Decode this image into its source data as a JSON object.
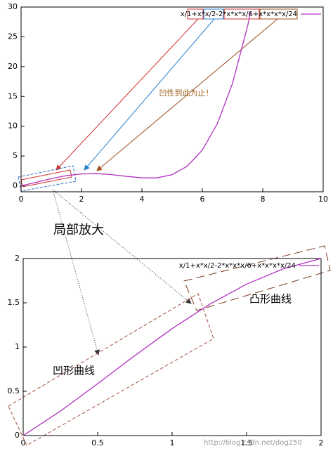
{
  "chart_data": [
    {
      "type": "line",
      "x": [
        0,
        0.5,
        1,
        1.5,
        2,
        2.5,
        3,
        3.5,
        4,
        4.5,
        5,
        5.5,
        6,
        6.5,
        7,
        7.5,
        7.6
      ],
      "series": [
        {
          "name": "x/1+x*x/2-2*x*x*x/6+x*x*x*x/24",
          "color": "#b030c0",
          "values": [
            0,
            0.586,
            1.208,
            1.711,
            2,
            2.044,
            1.875,
            1.586,
            1.333,
            1.336,
            1.875,
            3.295,
            6,
            10.461,
            17.208,
            26.836,
            29.17
          ]
        }
      ],
      "xlim": [
        0,
        10
      ],
      "xticks": [
        0,
        2,
        4,
        6,
        8,
        10
      ],
      "ylim": [
        -1,
        30
      ],
      "yticks": [
        0,
        5,
        10,
        15,
        20,
        25,
        30
      ],
      "annotations": [
        "凹性到此为止！",
        "局部放大"
      ]
    },
    {
      "type": "line",
      "x": [
        0,
        0.25,
        0.5,
        0.75,
        1,
        1.25,
        1.5,
        1.75,
        2
      ],
      "series": [
        {
          "name": "x/1+x*x/2-2*x*x*x/6+x*x*x*x/24",
          "color": "#b030c0",
          "values": [
            0,
            0.276,
            0.586,
            0.904,
            1.208,
            1.482,
            1.711,
            1.886,
            2
          ]
        }
      ],
      "xlim": [
        0,
        2
      ],
      "xticks": [
        0,
        0.5,
        1,
        1.5,
        2
      ],
      "ylim": [
        0,
        2
      ],
      "yticks": [
        0,
        0.5,
        1,
        1.5,
        2
      ],
      "annotations": [
        "凸形曲线",
        "凹形曲线",
        "http://blog.csdn.net/dog250"
      ]
    }
  ]
}
